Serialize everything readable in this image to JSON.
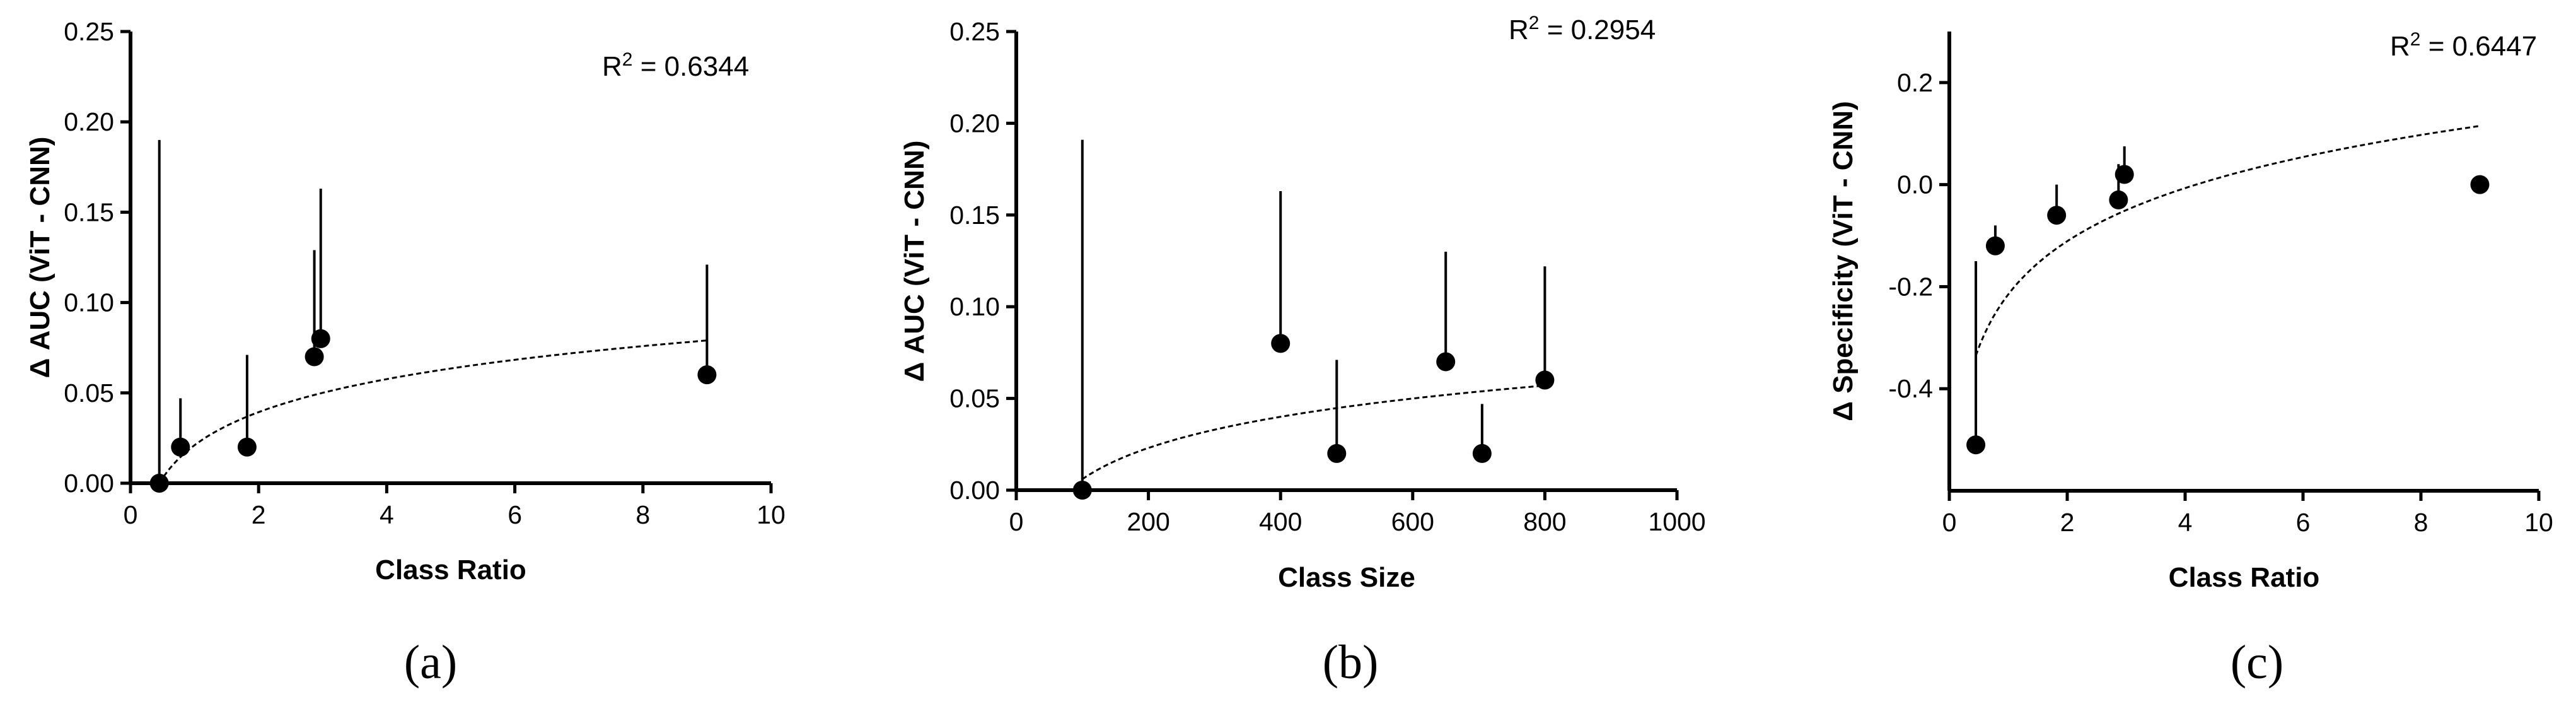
{
  "chart_data": [
    {
      "type": "scatter",
      "panel_label": "(a)",
      "title": "",
      "xlabel": "Class Ratio",
      "ylabel": "Δ AUC (ViT - CNN)",
      "xlim": [
        0,
        10
      ],
      "ylim": [
        0,
        0.25
      ],
      "xticks": [
        0,
        2,
        4,
        6,
        8,
        10
      ],
      "xtick_labels": [
        "0",
        "2",
        "4",
        "6",
        "8",
        "10"
      ],
      "yticks": [
        0,
        0.05,
        0.1,
        0.15,
        0.2,
        0.25
      ],
      "ytick_labels": [
        "0.00",
        "0.05",
        "0.10",
        "0.15",
        "0.20",
        "0.25"
      ],
      "annotation": {
        "prefix": "R",
        "sup": "2",
        "suffix": " = 0.6344"
      },
      "points": [
        {
          "x": 0.45,
          "y": 0.0,
          "err_upper": 0.19
        },
        {
          "x": 0.78,
          "y": 0.02,
          "err_upper": 0.047
        },
        {
          "x": 1.82,
          "y": 0.02,
          "err_upper": 0.071
        },
        {
          "x": 2.87,
          "y": 0.07,
          "err_upper": 0.129
        },
        {
          "x": 2.97,
          "y": 0.08,
          "err_upper": 0.163
        },
        {
          "x": 9.0,
          "y": 0.06,
          "err_upper": 0.121
        }
      ],
      "fit": {
        "model": "logarithmic",
        "x_range": [
          0.45,
          9.0
        ],
        "y_range": [
          0.0,
          0.079
        ]
      }
    },
    {
      "type": "scatter",
      "panel_label": "(b)",
      "title": "",
      "xlabel": "Class Size",
      "ylabel": "Δ AUC (ViT - CNN)",
      "xlim": [
        0,
        1000
      ],
      "ylim": [
        0,
        0.25
      ],
      "xticks": [
        0,
        200,
        400,
        600,
        800,
        1000
      ],
      "xtick_labels": [
        "0",
        "200",
        "400",
        "600",
        "800",
        "1000"
      ],
      "yticks": [
        0,
        0.05,
        0.1,
        0.15,
        0.2,
        0.25
      ],
      "ytick_labels": [
        "0.00",
        "0.05",
        "0.10",
        "0.15",
        "0.20",
        "0.25"
      ],
      "annotation": {
        "prefix": "R",
        "sup": "2",
        "suffix": " = 0.2954"
      },
      "points": [
        {
          "x": 100,
          "y": 0.0,
          "err_upper": 0.191
        },
        {
          "x": 400,
          "y": 0.08,
          "err_upper": 0.163
        },
        {
          "x": 485,
          "y": 0.02,
          "err_upper": 0.071
        },
        {
          "x": 650,
          "y": 0.07,
          "err_upper": 0.13
        },
        {
          "x": 705,
          "y": 0.02,
          "err_upper": 0.047
        },
        {
          "x": 800,
          "y": 0.06,
          "err_upper": 0.122
        }
      ],
      "fit": {
        "model": "logarithmic",
        "x_range": [
          100,
          800
        ],
        "y_range": [
          0.006,
          0.057
        ]
      }
    },
    {
      "type": "scatter",
      "panel_label": "(c)",
      "title": "",
      "xlabel": "Class Ratio",
      "ylabel": "Δ Specificity (ViT - CNN)",
      "xlim": [
        0,
        10
      ],
      "ylim": [
        -0.6,
        0.3
      ],
      "xticks": [
        0,
        2,
        4,
        6,
        8,
        10
      ],
      "xtick_labels": [
        "0",
        "2",
        "4",
        "6",
        "8",
        "10"
      ],
      "yticks": [
        -0.4,
        -0.2,
        0.0,
        0.2
      ],
      "ytick_labels": [
        "-0.4",
        "-0.2",
        "0.0",
        "0.2"
      ],
      "annotation": {
        "prefix": "R",
        "sup": "2",
        "suffix": " = 0.6447"
      },
      "points": [
        {
          "x": 0.45,
          "y": -0.51,
          "err_upper": -0.15
        },
        {
          "x": 0.78,
          "y": -0.12,
          "err_upper": -0.08
        },
        {
          "x": 1.82,
          "y": -0.06,
          "err_upper": 0.0
        },
        {
          "x": 2.87,
          "y": -0.03,
          "err_upper": 0.04
        },
        {
          "x": 2.97,
          "y": 0.02,
          "err_upper": 0.075
        },
        {
          "x": 9.0,
          "y": 0.0,
          "err_upper": null
        }
      ],
      "fit": {
        "model": "logarithmic",
        "x_range": [
          0.45,
          9.0
        ],
        "y_range": [
          -0.335,
          0.115
        ]
      }
    }
  ]
}
